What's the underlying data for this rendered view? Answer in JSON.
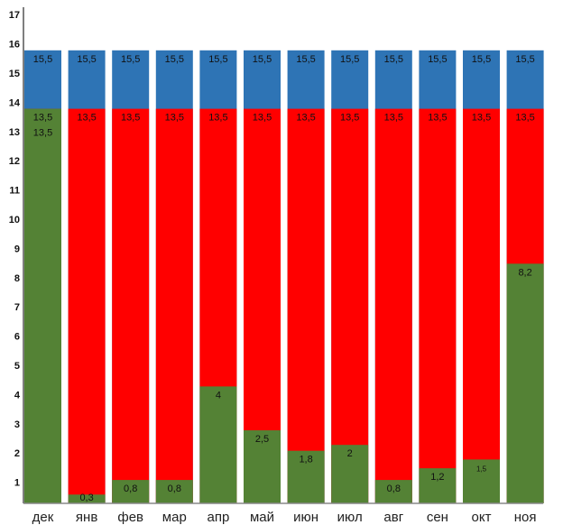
{
  "chart_data": {
    "type": "bar",
    "title": "",
    "xlabel": "",
    "ylabel": "",
    "ylim": [
      0,
      17
    ],
    "yticks": [
      "1",
      "2",
      "3",
      "4",
      "5",
      "6",
      "7",
      "8",
      "9",
      "10",
      "11",
      "12",
      "13",
      "14",
      "15",
      "16",
      "17"
    ],
    "categories": [
      "дек",
      "янв",
      "фев",
      "мар",
      "апр",
      "май",
      "июн",
      "июл",
      "авг",
      "сен",
      "окт",
      "ноя"
    ],
    "overlap": true,
    "series": [
      {
        "name": "blue",
        "color": "#2e74b5",
        "values": [
          15.5,
          15.5,
          15.5,
          15.5,
          15.5,
          15.5,
          15.5,
          15.5,
          15.5,
          15.5,
          15.5,
          15.5
        ],
        "labels": [
          "15,5",
          "15,5",
          "15,5",
          "15,5",
          "15,5",
          "15,5",
          "15,5",
          "15,5",
          "15,5",
          "15,5",
          "15,5",
          "15,5"
        ]
      },
      {
        "name": "red",
        "color": "#ff0000",
        "values": [
          13.5,
          13.5,
          13.5,
          13.5,
          13.5,
          13.5,
          13.5,
          13.5,
          13.5,
          13.5,
          13.5,
          13.5
        ],
        "labels": [
          "13,5",
          "13,5",
          "13,5",
          "13,5",
          "13,5",
          "13,5",
          "13,5",
          "13,5",
          "13,5",
          "13,5",
          "13,5",
          "13,5"
        ]
      },
      {
        "name": "green",
        "color": "#548235",
        "values": [
          13.5,
          0.3,
          0.8,
          0.8,
          4,
          2.5,
          1.8,
          2,
          0.8,
          1.2,
          1.5,
          8.2
        ],
        "labels": [
          "13,5",
          "0,3",
          "0,8",
          "0,8",
          "4",
          "2,5",
          "1,8",
          "2",
          "0,8",
          "1,2",
          "1,5",
          "8,2"
        ]
      }
    ],
    "grid": false
  }
}
